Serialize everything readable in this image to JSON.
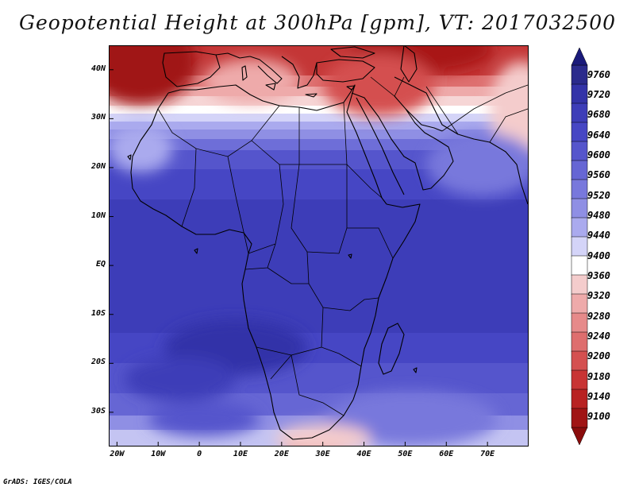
{
  "title": "Geopotential Height at 300hPa [gpm], VT: 2017032500",
  "footer": "GrADS: IGES/COLA",
  "lat_labels": [
    "40N",
    "30N",
    "20N",
    "10N",
    "EQ",
    "10S",
    "20S",
    "30S"
  ],
  "lat_values": [
    40,
    30,
    20,
    10,
    0,
    -10,
    -20,
    -30
  ],
  "lon_labels": [
    "20W",
    "10W",
    "0",
    "10E",
    "20E",
    "30E",
    "40E",
    "50E",
    "60E",
    "70E"
  ],
  "lon_values": [
    -20,
    -10,
    0,
    10,
    20,
    30,
    40,
    50,
    60,
    70
  ],
  "map_extent": {
    "lon_min": -22,
    "lon_max": 80,
    "lat_min": -37,
    "lat_max": 45
  },
  "colorbar": {
    "labels": [
      "9760",
      "9720",
      "9680",
      "9640",
      "9600",
      "9560",
      "9520",
      "9480",
      "9440",
      "9400",
      "9360",
      "9320",
      "9280",
      "9240",
      "9200",
      "9180",
      "9140",
      "9100"
    ],
    "colors": [
      "#2a2a8c",
      "#3333a8",
      "#3d3db8",
      "#4646c4",
      "#5555cc",
      "#6666d4",
      "#7878dc",
      "#8f8fe4",
      "#aaaaee",
      "#d4d4f8",
      "#ffffff",
      "#f4cccc",
      "#eeaaaa",
      "#e68a8a",
      "#de6e6e",
      "#d45050",
      "#c83434",
      "#b82222",
      "#a01414"
    ]
  },
  "colors": {
    "outline": "#000000",
    "background": "#ffffff"
  }
}
